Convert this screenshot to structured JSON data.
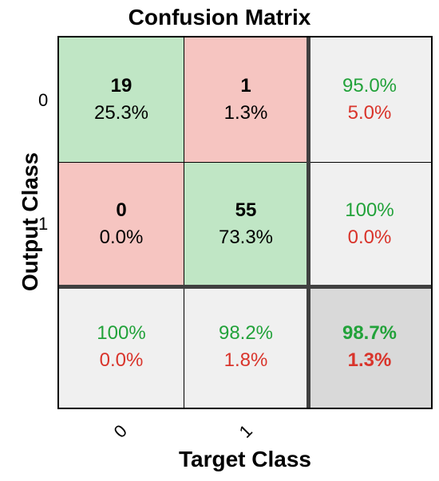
{
  "chart_data": {
    "type": "heatmap",
    "title": "Confusion Matrix",
    "xlabel": "Target Class",
    "ylabel": "Output Class",
    "x_tick_labels": [
      "0",
      "1"
    ],
    "y_tick_labels": [
      "0",
      "1"
    ],
    "matrix": [
      [
        {
          "count": "19",
          "pct": "25.3%"
        },
        {
          "count": "1",
          "pct": "1.3%"
        }
      ],
      [
        {
          "count": "0",
          "pct": "0.0%"
        },
        {
          "count": "55",
          "pct": "73.3%"
        }
      ]
    ],
    "row_summary": [
      {
        "correct": "95.0%",
        "incorrect": "5.0%"
      },
      {
        "correct": "100%",
        "incorrect": "0.0%"
      }
    ],
    "col_summary": [
      {
        "correct": "100%",
        "incorrect": "0.0%"
      },
      {
        "correct": "98.2%",
        "incorrect": "1.8%"
      }
    ],
    "overall": {
      "correct": "98.7%",
      "incorrect": "1.3%"
    },
    "colors": {
      "correct_cell": "#c0e6c5",
      "incorrect_cell": "#f6c5c1",
      "summary_cell": "#f0f0f0",
      "overall_cell": "#d9d9d9",
      "correct_text": "#22a23a",
      "incorrect_text": "#d9342b"
    }
  }
}
